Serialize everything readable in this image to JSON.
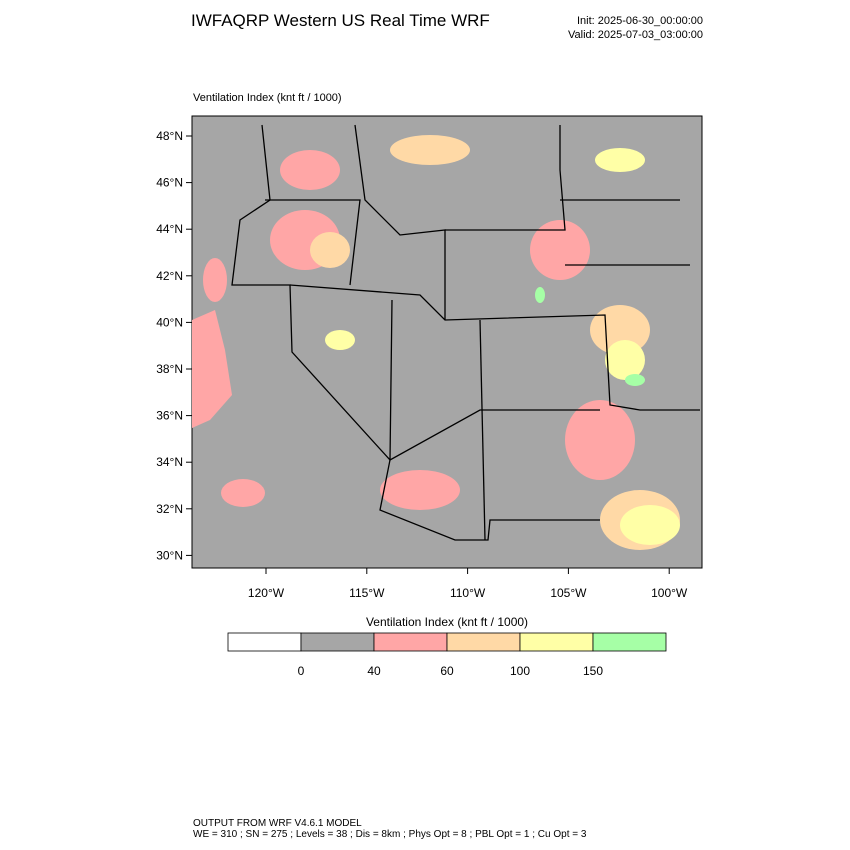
{
  "title": "IWFAQRP Western US Real Time WRF",
  "init": "Init: 2025-06-30_00:00:00",
  "valid": "Valid: 2025-07-03_03:00:00",
  "map": {
    "label": "Ventilation Index   (knt ft / 1000)",
    "lat_labels": [
      "48°N",
      "46°N",
      "44°N",
      "42°N",
      "40°N",
      "38°N",
      "36°N",
      "34°N",
      "32°N",
      "30°N"
    ],
    "lon_labels": [
      "120°W",
      "115°W",
      "110°W",
      "105°W",
      "100°W"
    ]
  },
  "colorbar": {
    "title": "Ventilation Index  (knt ft / 1000)",
    "colors": [
      "#ffffff",
      "#a6a6a6",
      "#ffa6a6",
      "#ffd9a6",
      "#ffffa6",
      "#a6ffa6"
    ],
    "labels": [
      "0",
      "40",
      "60",
      "100",
      "150"
    ]
  },
  "footer": [
    "OUTPUT FROM WRF V4.6.1 MODEL",
    "WE = 310 ; SN = 275 ; Levels = 38 ; Dis = 8km ; Phys Opt = 8 ; PBL Opt = 1 ; Cu Opt = 3"
  ]
}
